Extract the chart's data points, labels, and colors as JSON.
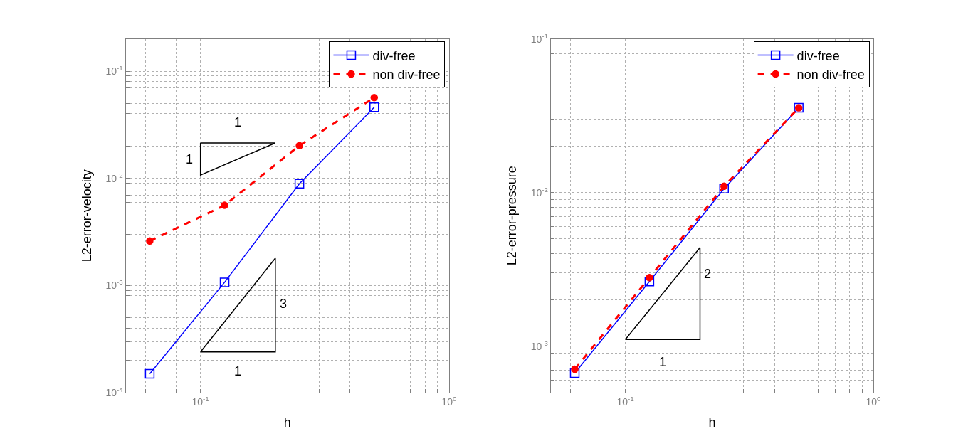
{
  "chart_data": [
    {
      "type": "line",
      "xlabel": "h",
      "ylabel": "L2-error-velocity",
      "log": "xy",
      "grid": true,
      "legend": "top right",
      "xlim": [
        0.05,
        1
      ],
      "ylim": [
        0.0001,
        0.2
      ],
      "xticks": [
        {
          "value": 0.06,
          "label": null
        },
        {
          "value": 0.07,
          "label": null
        },
        {
          "value": 0.08,
          "label": null
        },
        {
          "value": 0.09,
          "label": null
        },
        {
          "value": 0.1,
          "label": "10$^{-1}$"
        },
        {
          "value": 0.2,
          "label": null
        },
        {
          "value": 0.3,
          "label": null
        },
        {
          "value": 0.4,
          "label": null
        },
        {
          "value": 0.5,
          "label": null
        },
        {
          "value": 0.6,
          "label": null
        },
        {
          "value": 0.7,
          "label": null
        },
        {
          "value": 0.8,
          "label": null
        },
        {
          "value": 0.9,
          "label": null
        },
        {
          "value": 1,
          "label": "10$^{0}$"
        }
      ],
      "yticks": [
        {
          "value": 0.0001,
          "label": "10$^{-4}$"
        },
        {
          "value": 0.0002,
          "label": null
        },
        {
          "value": 0.0003,
          "label": null
        },
        {
          "value": 0.0004,
          "label": null
        },
        {
          "value": 0.0005,
          "label": null
        },
        {
          "value": 0.0006,
          "label": null
        },
        {
          "value": 0.0007,
          "label": null
        },
        {
          "value": 0.0008,
          "label": null
        },
        {
          "value": 0.0009,
          "label": null
        },
        {
          "value": 0.001,
          "label": "10$^{-3}$"
        },
        {
          "value": 0.002,
          "label": null
        },
        {
          "value": 0.003,
          "label": null
        },
        {
          "value": 0.004,
          "label": null
        },
        {
          "value": 0.005,
          "label": null
        },
        {
          "value": 0.006,
          "label": null
        },
        {
          "value": 0.007,
          "label": null
        },
        {
          "value": 0.008,
          "label": null
        },
        {
          "value": 0.009,
          "label": null
        },
        {
          "value": 0.01,
          "label": "10$^{-2}$"
        },
        {
          "value": 0.02,
          "label": null
        },
        {
          "value": 0.03,
          "label": null
        },
        {
          "value": 0.04,
          "label": null
        },
        {
          "value": 0.05,
          "label": null
        },
        {
          "value": 0.06,
          "label": null
        },
        {
          "value": 0.07,
          "label": null
        },
        {
          "value": 0.08,
          "label": null
        },
        {
          "value": 0.09,
          "label": null
        },
        {
          "value": 0.1,
          "label": "10$^{-1}$"
        },
        {
          "value": 0.2,
          "label": null
        }
      ],
      "x": [
        0.0625,
        0.125,
        0.25,
        0.5
      ],
      "series": [
        {
          "name": "div-free",
          "color": "#0000ff",
          "marker": "square",
          "line_style": "solid",
          "values": [
            0.00015,
            0.00107,
            0.0089,
            0.046
          ]
        },
        {
          "name": "non div-free",
          "color": "#ff0000",
          "marker": "circle",
          "line_style": "dashed",
          "values": [
            0.0026,
            0.0056,
            0.0202,
            0.0567
          ]
        }
      ],
      "annotations": [
        "1",
        "1",
        "3",
        "1"
      ]
    },
    {
      "type": "line",
      "xlabel": "h",
      "ylabel": "L2-error-pressure",
      "log": "xy",
      "grid": true,
      "legend": "top right",
      "xlim": [
        0.05,
        1
      ],
      "ylim": [
        0.0005,
        0.1
      ],
      "xticks": [
        {
          "value": 0.06,
          "label": null
        },
        {
          "value": 0.07,
          "label": null
        },
        {
          "value": 0.08,
          "label": null
        },
        {
          "value": 0.09,
          "label": null
        },
        {
          "value": 0.1,
          "label": "10$^{-1}$"
        },
        {
          "value": 0.2,
          "label": null
        },
        {
          "value": 0.3,
          "label": null
        },
        {
          "value": 0.4,
          "label": null
        },
        {
          "value": 0.5,
          "label": null
        },
        {
          "value": 0.6,
          "label": null
        },
        {
          "value": 0.7,
          "label": null
        },
        {
          "value": 0.8,
          "label": null
        },
        {
          "value": 0.9,
          "label": null
        },
        {
          "value": 1,
          "label": "10$^{0}$"
        }
      ],
      "yticks": [
        {
          "value": 0.0006,
          "label": null
        },
        {
          "value": 0.0007,
          "label": null
        },
        {
          "value": 0.0008,
          "label": null
        },
        {
          "value": 0.0009,
          "label": null
        },
        {
          "value": 0.001,
          "label": "10$^{-3}$"
        },
        {
          "value": 0.002,
          "label": null
        },
        {
          "value": 0.003,
          "label": null
        },
        {
          "value": 0.004,
          "label": null
        },
        {
          "value": 0.005,
          "label": null
        },
        {
          "value": 0.006,
          "label": null
        },
        {
          "value": 0.007,
          "label": null
        },
        {
          "value": 0.008,
          "label": null
        },
        {
          "value": 0.009,
          "label": null
        },
        {
          "value": 0.01,
          "label": "10$^{-2}$"
        },
        {
          "value": 0.02,
          "label": null
        },
        {
          "value": 0.03,
          "label": null
        },
        {
          "value": 0.04,
          "label": null
        },
        {
          "value": 0.05,
          "label": null
        },
        {
          "value": 0.06,
          "label": null
        },
        {
          "value": 0.07,
          "label": null
        },
        {
          "value": 0.08,
          "label": null
        },
        {
          "value": 0.09,
          "label": null
        },
        {
          "value": 0.1,
          "label": "10$^{-1}$"
        }
      ],
      "x": [
        0.0625,
        0.125,
        0.25,
        0.5
      ],
      "series": [
        {
          "name": "div-free",
          "color": "#0000ff",
          "marker": "square",
          "line_style": "solid",
          "values": [
            0.00067,
            0.00264,
            0.0106,
            0.0356
          ]
        },
        {
          "name": "non div-free",
          "color": "#ff0000",
          "marker": "circle",
          "line_style": "dashed",
          "values": [
            0.00071,
            0.0028,
            0.011,
            0.0356
          ]
        }
      ],
      "annotations": [
        "2",
        "1"
      ]
    }
  ]
}
